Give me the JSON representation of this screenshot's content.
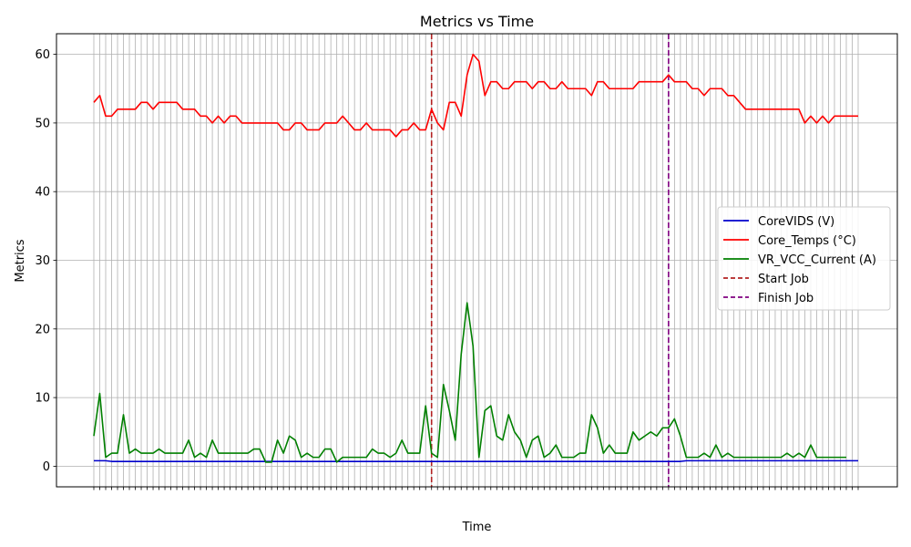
{
  "chart_data": {
    "type": "line",
    "title": "Metrics vs Time",
    "xlabel": "Time",
    "ylabel": "Metrics",
    "ylim": [
      -3,
      63
    ],
    "yticks": [
      0,
      10,
      20,
      30,
      40,
      50,
      60
    ],
    "grid": true,
    "legend_position": "center-right",
    "x_count": 130,
    "series": [
      {
        "name": "CoreVIDS (V)",
        "color": "#0000cc",
        "style": "solid",
        "values": [
          0.8,
          0.8,
          0.8,
          0.7,
          0.7,
          0.7,
          0.7,
          0.7,
          0.7,
          0.7,
          0.7,
          0.7,
          0.7,
          0.7,
          0.7,
          0.7,
          0.7,
          0.7,
          0.7,
          0.7,
          0.7,
          0.7,
          0.7,
          0.7,
          0.7,
          0.7,
          0.7,
          0.7,
          0.7,
          0.7,
          0.7,
          0.7,
          0.7,
          0.7,
          0.7,
          0.7,
          0.7,
          0.7,
          0.7,
          0.7,
          0.7,
          0.7,
          0.7,
          0.7,
          0.7,
          0.7,
          0.7,
          0.7,
          0.7,
          0.7,
          0.7,
          0.7,
          0.7,
          0.7,
          0.7,
          0.7,
          0.7,
          0.7,
          0.7,
          0.7,
          0.7,
          0.7,
          0.7,
          0.7,
          0.7,
          0.7,
          0.7,
          0.7,
          0.7,
          0.7,
          0.7,
          0.7,
          0.7,
          0.7,
          0.7,
          0.7,
          0.7,
          0.7,
          0.7,
          0.7,
          0.7,
          0.7,
          0.7,
          0.7,
          0.7,
          0.7,
          0.7,
          0.7,
          0.7,
          0.7,
          0.7,
          0.7,
          0.7,
          0.7,
          0.7,
          0.7,
          0.7,
          0.7,
          0.7,
          0.7,
          0.8,
          0.8,
          0.8,
          0.8,
          0.8,
          0.8,
          0.8,
          0.8,
          0.8,
          0.8,
          0.8,
          0.8,
          0.8,
          0.8,
          0.8,
          0.8,
          0.8,
          0.8,
          0.8,
          0.8,
          0.8,
          0.8,
          0.8,
          0.8,
          0.8,
          0.8,
          0.8,
          0.8,
          0.8,
          0.8
        ]
      },
      {
        "name": "Core_Temps (°C)",
        "color": "#ff0000",
        "style": "solid",
        "values": [
          53,
          54,
          51,
          51,
          52,
          52,
          52,
          52,
          53,
          53,
          52,
          53,
          53,
          53,
          53,
          52,
          52,
          52,
          51,
          51,
          50,
          51,
          50,
          51,
          51,
          50,
          50,
          50,
          50,
          50,
          50,
          50,
          49,
          49,
          50,
          50,
          49,
          49,
          49,
          50,
          50,
          50,
          51,
          50,
          49,
          49,
          50,
          49,
          49,
          49,
          49,
          48,
          49,
          49,
          50,
          49,
          49,
          52,
          50,
          49,
          53,
          53,
          51,
          57,
          60,
          59,
          54,
          56,
          56,
          55,
          55,
          56,
          56,
          56,
          55,
          56,
          56,
          55,
          55,
          56,
          55,
          55,
          55,
          55,
          54,
          56,
          56,
          55,
          55,
          55,
          55,
          55,
          56,
          56,
          56,
          56,
          56,
          57,
          56,
          56,
          56,
          55,
          55,
          54,
          55,
          55,
          55,
          54,
          54,
          53,
          52,
          52,
          52,
          52,
          52,
          52,
          52,
          52,
          52,
          52,
          50,
          51,
          50,
          51,
          50,
          51,
          51,
          51,
          51,
          51
        ]
      },
      {
        "name": "VR_VCC_Current (A)",
        "color": "#008000",
        "style": "solid",
        "values": [
          4.4,
          10.6,
          1.3,
          1.9,
          1.9,
          7.5,
          1.9,
          2.5,
          1.9,
          1.9,
          1.9,
          2.5,
          1.9,
          1.9,
          1.9,
          1.9,
          3.8,
          1.3,
          1.9,
          1.3,
          3.8,
          1.9,
          1.9,
          1.9,
          1.9,
          1.9,
          1.9,
          2.5,
          2.5,
          0.6,
          0.6,
          3.8,
          1.9,
          4.4,
          3.8,
          1.3,
          1.9,
          1.3,
          1.3,
          2.5,
          2.5,
          0.6,
          1.3,
          1.3,
          1.3,
          1.3,
          1.3,
          2.5,
          1.9,
          1.9,
          1.3,
          1.9,
          3.8,
          1.9,
          1.9,
          1.9,
          8.8,
          1.9,
          1.3,
          11.9,
          8.1,
          3.8,
          16.3,
          23.8,
          17.5,
          1.3,
          8.1,
          8.8,
          4.4,
          3.8,
          7.5,
          5.0,
          3.8,
          1.3,
          3.8,
          4.4,
          1.3,
          1.9,
          3.1,
          1.3,
          1.3,
          1.3,
          1.9,
          1.9,
          7.5,
          5.6,
          1.9,
          3.1,
          1.9,
          1.9,
          1.9,
          5.0,
          3.8,
          4.4,
          5.0,
          4.4,
          5.6,
          5.6,
          6.9,
          4.4,
          1.3,
          1.3,
          1.3,
          1.9,
          1.3,
          3.1,
          1.3,
          1.9,
          1.3,
          1.3,
          1.3,
          1.3,
          1.3,
          1.3,
          1.3,
          1.3,
          1.3,
          1.9,
          1.3,
          1.9,
          1.3,
          3.1,
          1.3,
          1.3,
          1.3,
          1.3,
          1.3,
          1.3
        ]
      }
    ],
    "markers": [
      {
        "name": "Start Job",
        "color": "#b22222",
        "x_index": 57
      },
      {
        "name": "Finish Job",
        "color": "#800080",
        "x_index": 97
      }
    ]
  }
}
